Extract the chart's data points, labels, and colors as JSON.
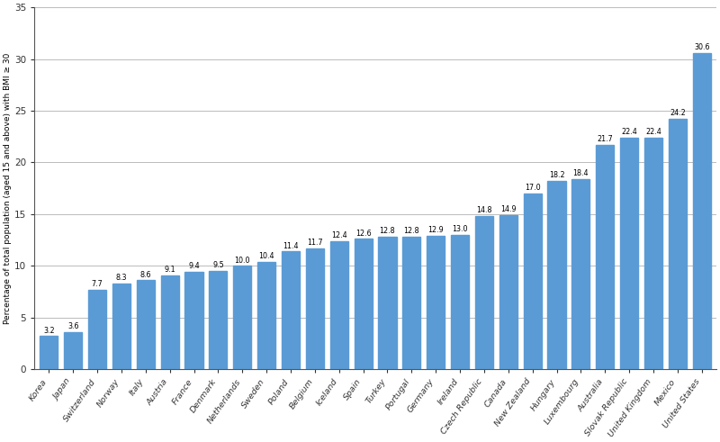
{
  "categories": [
    "Korea",
    "Japan",
    "Switzerland",
    "Norway",
    "Italy",
    "Austria",
    "France",
    "Denmark",
    "Netherlands",
    "Sweden",
    "Poland",
    "Belgium",
    "Iceland",
    "Spain",
    "Turkey",
    "Portugal",
    "Germany",
    "Ireland",
    "Czech Republic",
    "Canada",
    "New Zealand",
    "Hungary",
    "Luxembourg",
    "Australia",
    "Slovak Republic",
    "United Kingdom",
    "Mexico",
    "United States"
  ],
  "values": [
    3.2,
    3.6,
    7.7,
    8.3,
    8.6,
    9.1,
    9.4,
    9.5,
    10.0,
    10.4,
    11.4,
    11.7,
    12.4,
    12.6,
    12.8,
    12.8,
    12.9,
    13.0,
    14.8,
    14.9,
    17.0,
    18.2,
    18.4,
    21.7,
    22.4,
    22.4,
    24.2,
    30.6
  ],
  "bar_color": "#5B9BD5",
  "ylabel": "Percentage of total population (aged 15 and above) with BMI ≥ 30",
  "ylim": [
    0,
    35
  ],
  "yticks": [
    0,
    5,
    10,
    15,
    20,
    25,
    30,
    35
  ],
  "background_color": "#ffffff",
  "grid_color": "#bbbbbb",
  "label_fontsize": 5.8,
  "tick_label_fontsize": 7.5,
  "ylabel_fontsize": 6.5
}
